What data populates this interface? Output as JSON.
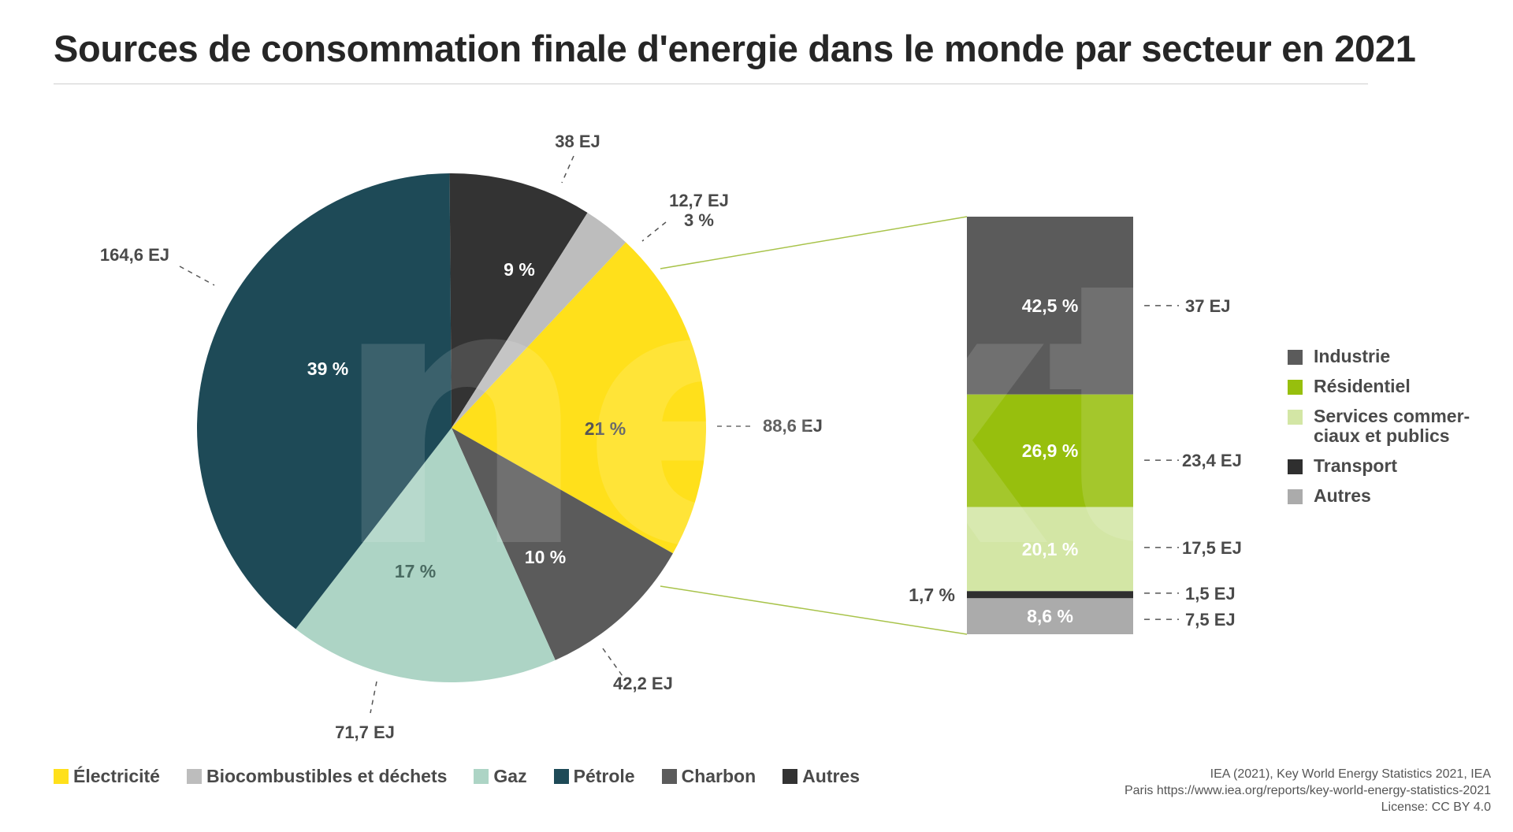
{
  "title": "Sources de consommation finale d'energie dans le monde par secteur en 2021",
  "watermark": "next",
  "chart_data": [
    {
      "type": "pie",
      "title": "Sources de consommation finale d'energie dans le monde par secteur en 2021",
      "slices": [
        {
          "name": "Électricité",
          "percent": 21,
          "value_label": "88,6 EJ",
          "percent_label": "21 %",
          "color": "#FFE01B"
        },
        {
          "name": "Charbon",
          "percent": 10,
          "value_label": "42,2 EJ",
          "percent_label": "10 %",
          "color": "#5B5B5B"
        },
        {
          "name": "Gaz",
          "percent": 17,
          "value_label": "71,7 EJ",
          "percent_label": "17 %",
          "color": "#ADD4C5"
        },
        {
          "name": "Pétrole",
          "percent": 39,
          "value_label": "164,6 EJ",
          "percent_label": "39 %",
          "color": "#1E4A57"
        },
        {
          "name": "Autres",
          "percent": 9,
          "value_label": "38 EJ",
          "percent_label": "9 %",
          "color": "#333333"
        },
        {
          "name": "Biocombustibles et déchets",
          "percent": 3,
          "value_label": "12,7 EJ",
          "percent_label": "3 %",
          "color": "#BDBDBD"
        }
      ],
      "legend": [
        {
          "name": "Électricité",
          "color": "#FFE01B"
        },
        {
          "name": "Biocombustibles et déchets",
          "color": "#BDBDBD"
        },
        {
          "name": "Gaz",
          "color": "#ADD4C5"
        },
        {
          "name": "Pétrole",
          "color": "#1E4A57"
        },
        {
          "name": "Charbon",
          "color": "#5B5B5B"
        },
        {
          "name": "Autres",
          "color": "#333333"
        }
      ],
      "legend_position": "bottom-left"
    },
    {
      "type": "bar",
      "stacked": true,
      "detail_of": "Électricité",
      "segments": [
        {
          "name": "Industrie",
          "percent": 42.5,
          "value": 37,
          "percent_label": "42,5 %",
          "value_label": "37 EJ",
          "color": "#5B5B5B"
        },
        {
          "name": "Résidentiel",
          "percent": 26.9,
          "value": 23.4,
          "percent_label": "26,9 %",
          "value_label": "23,4 EJ",
          "color": "#97BF0D"
        },
        {
          "name": "Services commerciaux et publics",
          "percent": 20.1,
          "value": 17.5,
          "percent_label": "20,1 %",
          "value_label": "17,5 EJ",
          "color": "#D3E6A5"
        },
        {
          "name": "Transport",
          "percent": 1.7,
          "value": 1.5,
          "percent_label": "1,7 %",
          "value_label": "1,5 EJ",
          "color": "#2F2F2F"
        },
        {
          "name": "Autres",
          "percent": 8.6,
          "value": 7.5,
          "percent_label": "8,6 %",
          "value_label": "7,5 EJ",
          "color": "#ABABAB"
        }
      ],
      "legend": [
        {
          "lines": [
            "Industrie"
          ],
          "color": "#5B5B5B"
        },
        {
          "lines": [
            "Résidentiel"
          ],
          "color": "#97BF0D"
        },
        {
          "lines": [
            "Services commer-",
            "ciaux et publics"
          ],
          "color": "#D3E6A5"
        },
        {
          "lines": [
            "Transport"
          ],
          "color": "#2F2F2F"
        },
        {
          "lines": [
            "Autres"
          ],
          "color": "#ABABAB"
        }
      ],
      "legend_position": "right"
    }
  ],
  "source": {
    "lines": [
      "IEA (2021), Key World Energy Statistics 2021, IEA",
      "Paris https://www.iea.org/reports/key-world-energy-statistics-2021",
      "License: CC BY 4.0"
    ]
  }
}
